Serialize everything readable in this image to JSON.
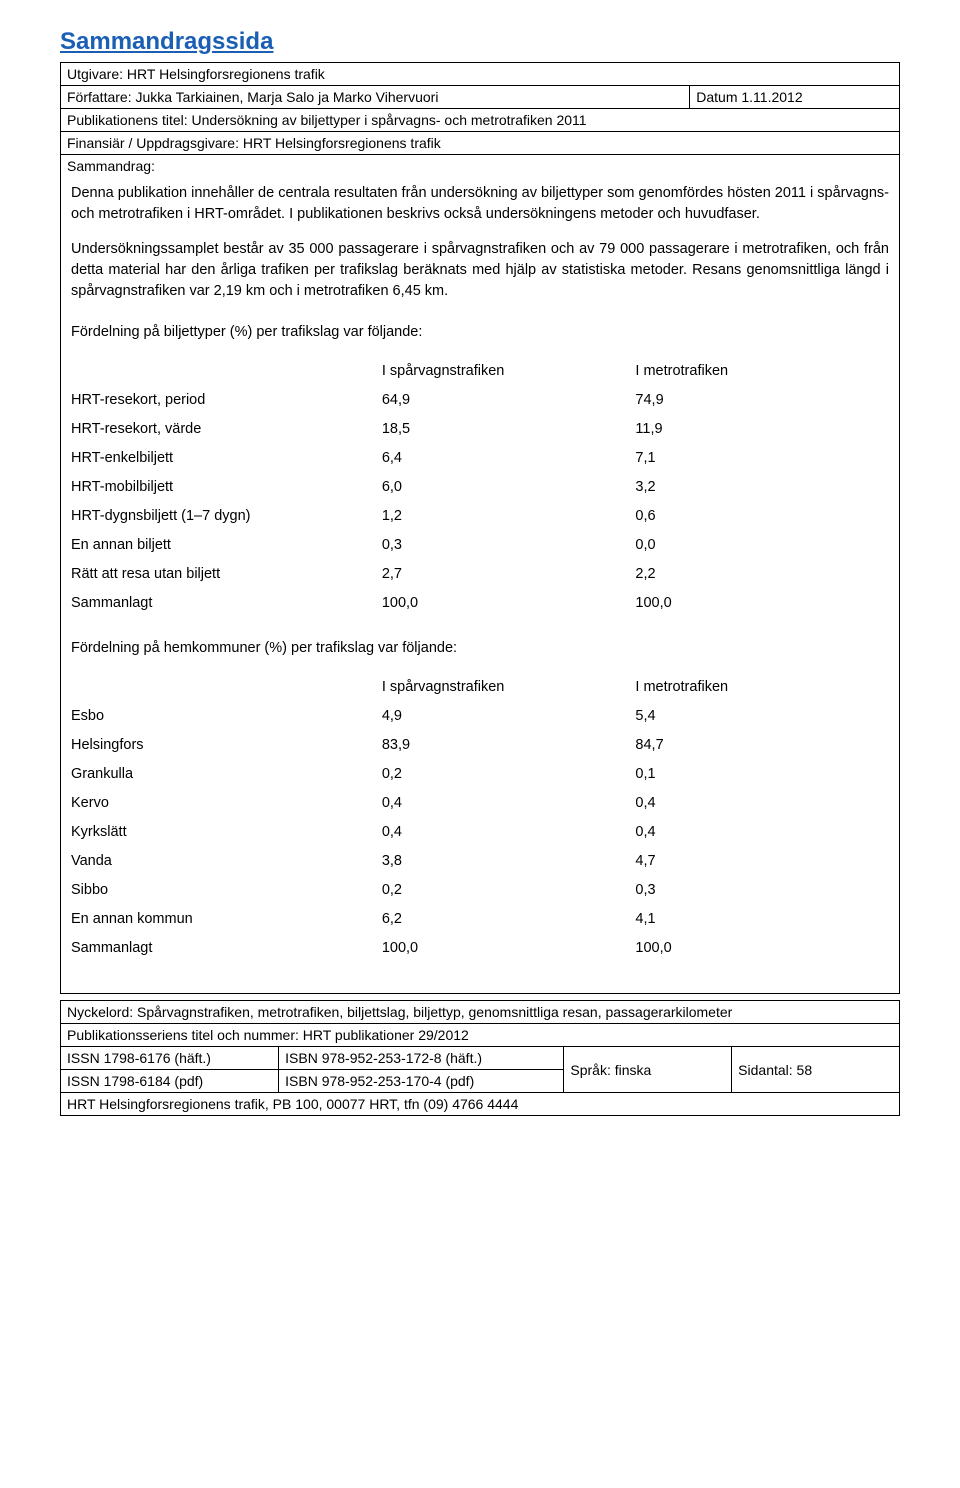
{
  "title": "Sammandragssida",
  "meta": {
    "publisher": "Utgivare: HRT Helsingforsregionens trafik",
    "authors_label": "Författare: Jukka Tarkiainen, Marja Salo ja Marko Vihervuori",
    "date": "Datum 1.11.2012",
    "pub_title": "Publikationens titel: Undersökning av biljettyper i spårvagns- och metrotrafiken 2011",
    "financier": "Finansiär / Uppdragsgivare: HRT Helsingforsregionens trafik",
    "summary_label": "Sammandrag:"
  },
  "para1": "Denna publikation innehåller de centrala resultaten från undersökning av biljettyper som genomfördes hösten 2011 i spårvagns- och metrotrafiken i HRT-området. I publikationen beskrivs också undersökningens metoder och huvudfaser.",
  "para2": "Undersökningssamplet består av 35 000 passagerare i spårvagnstrafiken och av 79 000 passagerare i metrotrafiken, och från detta material har den årliga trafiken per trafikslag beräknats med hjälp av statistiska metoder. Resans genomsnittliga längd i spårvagnstrafiken var 2,19 km och i metrotrafiken 6,45 km.",
  "table1_head": "Fördelning på biljettyper (%) per trafikslag var följande:",
  "table2_head": "Fördelning på hemkommuner (%) per trafikslag var följande:",
  "col_tram": "I spårvagnstrafiken",
  "col_metro": "I metrotrafiken",
  "table1": {
    "rows": [
      [
        "HRT-resekort, period",
        "64,9",
        "74,9"
      ],
      [
        "HRT-resekort, värde",
        "18,5",
        "11,9"
      ],
      [
        "HRT-enkelbiljett",
        "6,4",
        "7,1"
      ],
      [
        "HRT-mobilbiljett",
        "6,0",
        "3,2"
      ],
      [
        "HRT-dygnsbiljett (1–7 dygn)",
        "1,2",
        "0,6"
      ],
      [
        "En annan biljett",
        "0,3",
        "0,0"
      ],
      [
        "Rätt att resa utan biljett",
        "2,7",
        "2,2"
      ],
      [
        "Sammanlagt",
        "100,0",
        "100,0"
      ]
    ]
  },
  "table2": {
    "rows": [
      [
        "Esbo",
        "4,9",
        "5,4"
      ],
      [
        "Helsingfors",
        "83,9",
        "84,7"
      ],
      [
        "Grankulla",
        "0,2",
        "0,1"
      ],
      [
        "Kervo",
        "0,4",
        "0,4"
      ],
      [
        "Kyrkslätt",
        "0,4",
        "0,4"
      ],
      [
        "Vanda",
        "3,8",
        "4,7"
      ],
      [
        "Sibbo",
        "0,2",
        "0,3"
      ],
      [
        "En annan kommun",
        "6,2",
        "4,1"
      ],
      [
        "Sammanlagt",
        "100,0",
        "100,0"
      ]
    ]
  },
  "footer": {
    "keywords": "Nyckelord: Spårvagnstrafiken, metrotrafiken, biljettslag, biljettyp, genomsnittliga resan, passagerarkilometer",
    "series": "Publikationsseriens titel och nummer: HRT publikationer 29/2012",
    "issn1": "ISSN 1798-6176 (häft.)",
    "isbn1": "ISBN 978-952-253-172-8 (häft.)",
    "issn2": "ISSN 1798-6184 (pdf)",
    "isbn2": "ISBN 978-952-253-170-4 (pdf)",
    "lang": "Språk: finska",
    "pages": "Sidantal: 58",
    "contact": "HRT Helsingforsregionens trafik, PB 100, 00077 HRT, tfn (09) 4766 4444"
  }
}
